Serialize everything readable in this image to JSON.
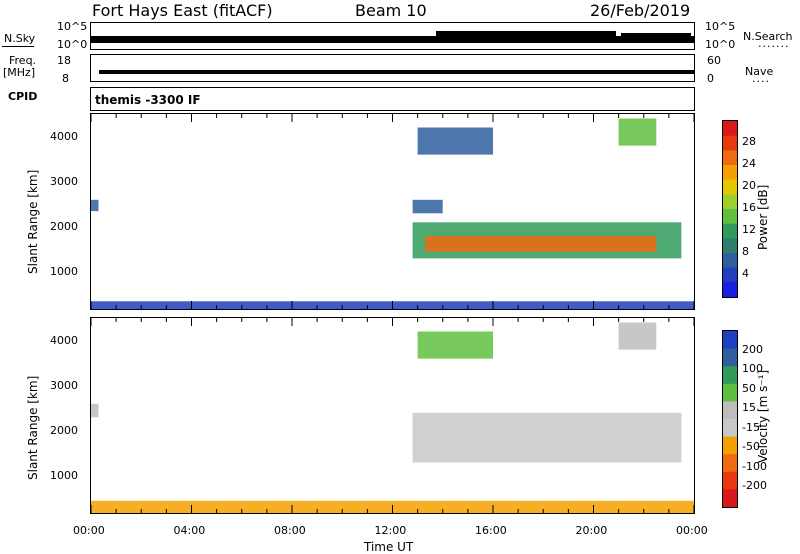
{
  "header": {
    "station": "Fort Hays East (fitACF)",
    "beam": "Beam 10",
    "date": "26/Feb/2019"
  },
  "top_panels": {
    "nsky_label": "N.Sky",
    "nsky_ticks": [
      "10^5",
      "10^0"
    ],
    "nsearch_label": "N.Search",
    "nsearch_ticks": [
      "10^5",
      "10^0"
    ],
    "freq_label_1": "Freq.",
    "freq_label_2": "[MHz]",
    "freq_ticks": [
      "18",
      "8"
    ],
    "nave_label": "Nave",
    "nave_ticks": [
      "60",
      "0"
    ],
    "cpid_label": "CPID",
    "cpid_value": "themis -3300 IF",
    "legend_dots": "·······",
    "nave_dots": "····"
  },
  "chart_data": [
    {
      "type": "heatmap",
      "name": "power",
      "ylabel": "Slant Range [km]",
      "yticks": [
        1000,
        2000,
        3000,
        4000
      ],
      "ylim": [
        180,
        4500
      ],
      "xlim": [
        0,
        24
      ],
      "colorbar": {
        "label": "Power [dB]",
        "ticks": [
          "28",
          "24",
          "20",
          "16",
          "12",
          "8",
          "4"
        ],
        "colors": [
          "#d7191c",
          "#e8380d",
          "#f06a10",
          "#f5a000",
          "#e3c900",
          "#9fcf2a",
          "#5fbf3e",
          "#2f9a5a",
          "#2e7f6e",
          "#2f5f9f",
          "#1f3fbf",
          "#1a1fe0"
        ]
      },
      "regions": [
        {
          "t0": 0.0,
          "t1": 24.0,
          "r0": 180,
          "r1": 350,
          "color": "#1f3fbf"
        },
        {
          "t0": 0.0,
          "t1": 0.3,
          "r0": 2350,
          "r1": 2600,
          "color": "#2f5f9f"
        },
        {
          "t0": 12.8,
          "t1": 23.5,
          "r0": 1300,
          "r1": 2100,
          "color": "#2f9a5a"
        },
        {
          "t0": 13.3,
          "t1": 22.5,
          "r0": 1450,
          "r1": 1800,
          "color": "#f06a10"
        },
        {
          "t0": 12.8,
          "t1": 14.0,
          "r0": 2300,
          "r1": 2600,
          "color": "#2f5f9f"
        },
        {
          "t0": 13.0,
          "t1": 16.0,
          "r0": 3600,
          "r1": 4200,
          "color": "#2f5f9f"
        },
        {
          "t0": 21.0,
          "t1": 22.5,
          "r0": 3800,
          "r1": 4400,
          "color": "#5fbf3e"
        }
      ]
    },
    {
      "type": "heatmap",
      "name": "velocity",
      "ylabel": "Slant Range [km]",
      "yticks": [
        1000,
        2000,
        3000,
        4000
      ],
      "ylim": [
        180,
        4500
      ],
      "xlim": [
        0,
        24
      ],
      "xticks": [
        "00:00",
        "04:00",
        "08:00",
        "12:00",
        "16:00",
        "20:00",
        "00:00"
      ],
      "xlabel": "Time UT",
      "colorbar": {
        "label": "Velocity [m s⁻¹]",
        "ticks": [
          "200",
          "100",
          "50",
          "15",
          "-15",
          "-50",
          "-100",
          "-200"
        ],
        "colors": [
          "#1f3fbf",
          "#2f5f9f",
          "#2f9a5a",
          "#5fbf3e",
          "#bdbdbd",
          "#c8c8c8",
          "#f5a000",
          "#f06a10",
          "#e8380d",
          "#d7191c"
        ]
      },
      "regions": [
        {
          "t0": 0.0,
          "t1": 24.0,
          "r0": 180,
          "r1": 450,
          "color": "#f5a000"
        },
        {
          "t0": 0.0,
          "t1": 0.3,
          "r0": 2300,
          "r1": 2600,
          "color": "#bdbdbd"
        },
        {
          "t0": 12.8,
          "t1": 23.5,
          "r0": 1300,
          "r1": 2400,
          "color": "#c8c8c8"
        },
        {
          "t0": 13.0,
          "t1": 16.0,
          "r0": 3600,
          "r1": 4200,
          "color": "#5fbf3e"
        },
        {
          "t0": 21.0,
          "t1": 22.5,
          "r0": 3800,
          "r1": 4400,
          "color": "#bdbdbd"
        }
      ]
    }
  ]
}
